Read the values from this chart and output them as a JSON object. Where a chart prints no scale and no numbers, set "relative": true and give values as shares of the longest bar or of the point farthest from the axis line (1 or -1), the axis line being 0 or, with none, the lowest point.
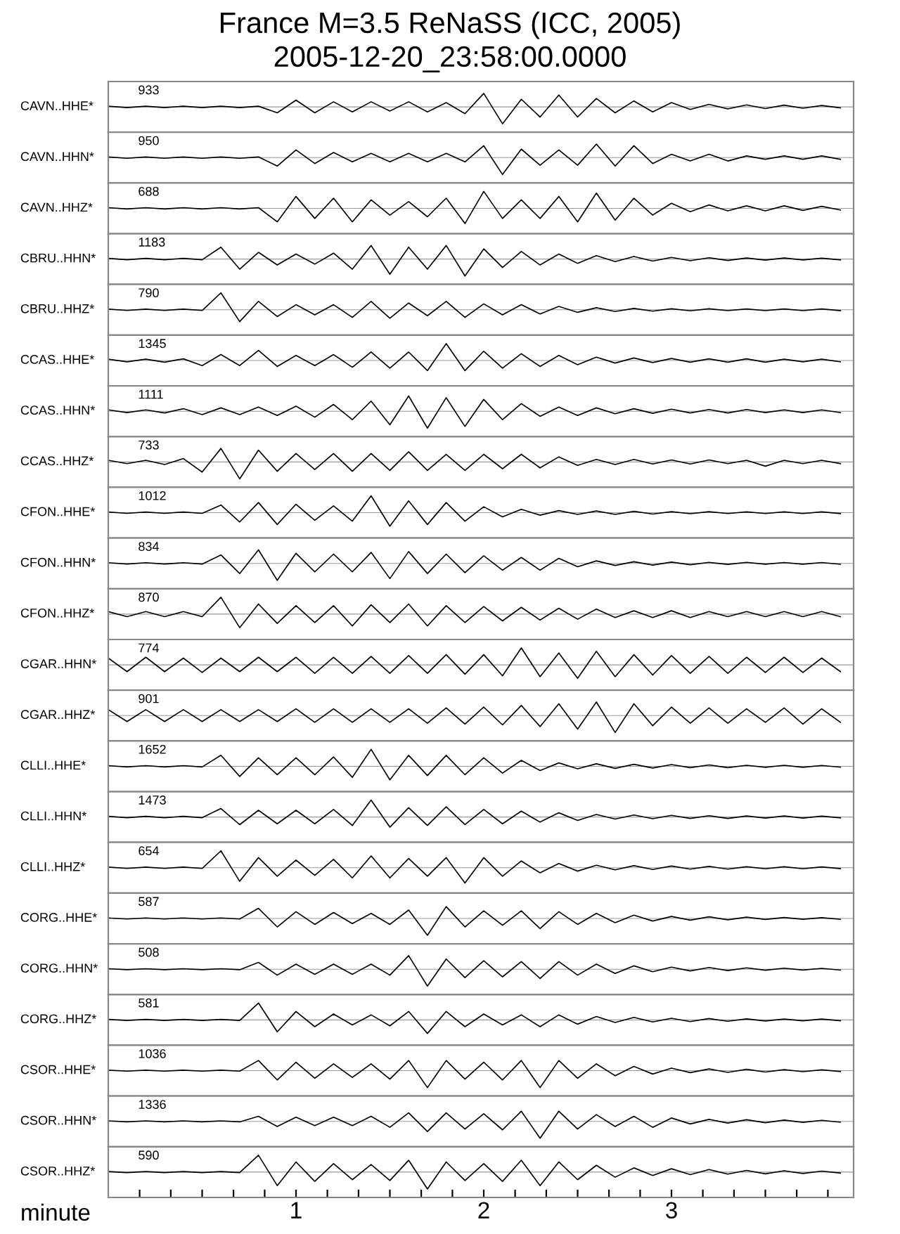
{
  "chart_data": [
    {
      "type": "line",
      "title": "France M=3.5 ReNaSS (ICC, 2005)",
      "subtitle": "2005-12-20_23:58:00.0000",
      "ylabel": "CAVN..HHE*",
      "annotations": [
        "933"
      ],
      "relative": true,
      "tick_labels": false,
      "xlim": [
        0,
        3.97
      ],
      "x": [
        0,
        0.1,
        0.2,
        0.3,
        0.4,
        0.5,
        0.6,
        0.7,
        0.8,
        0.9,
        1,
        1.1,
        1.2,
        1.3,
        1.4,
        1.5,
        1.6,
        1.7,
        1.8,
        1.9,
        2,
        2.1,
        2.2,
        2.3,
        2.4,
        2.5,
        2.6,
        2.7,
        2.8,
        2.9,
        3,
        3.1,
        3.2,
        3.3,
        3.4,
        3.5,
        3.6,
        3.7,
        3.8,
        3.9
      ],
      "values": [
        0.04,
        -0.04,
        0.04,
        -0.04,
        0.04,
        -0.04,
        0.04,
        -0.04,
        0.04,
        -0.35,
        0.4,
        -0.35,
        0.3,
        -0.3,
        0.3,
        -0.25,
        0.3,
        -0.3,
        0.25,
        -0.4,
        0.8,
        -1,
        0.45,
        -0.6,
        0.7,
        -0.6,
        0.5,
        -0.35,
        0.35,
        -0.3,
        0.25,
        -0.15,
        0.15,
        -0.12,
        0.12,
        -0.1,
        0.1,
        -0.08,
        0.08,
        -0.06
      ]
    },
    {
      "type": "line",
      "ylabel": "CAVN..HHN*",
      "annotations": [
        "950"
      ],
      "relative": true,
      "tick_labels": false,
      "xlim": [
        0,
        3.97
      ],
      "x": [
        0,
        0.1,
        0.2,
        0.3,
        0.4,
        0.5,
        0.6,
        0.7,
        0.8,
        0.9,
        1,
        1.1,
        1.2,
        1.3,
        1.4,
        1.5,
        1.6,
        1.7,
        1.8,
        1.9,
        2,
        2.1,
        2.2,
        2.3,
        2.4,
        2.5,
        2.6,
        2.7,
        2.8,
        2.9,
        3,
        3.1,
        3.2,
        3.3,
        3.4,
        3.5,
        3.6,
        3.7,
        3.8,
        3.9
      ],
      "values": [
        0.04,
        -0.04,
        0.04,
        -0.04,
        0.04,
        -0.04,
        0.04,
        -0.04,
        0.04,
        -0.5,
        0.45,
        -0.35,
        0.3,
        -0.25,
        0.25,
        -0.25,
        0.25,
        -0.25,
        0.25,
        -0.25,
        0.7,
        -1,
        0.5,
        -0.45,
        0.45,
        -0.45,
        0.8,
        -0.5,
        0.7,
        -0.35,
        0.2,
        -0.2,
        0.2,
        -0.2,
        0.1,
        -0.1,
        0.1,
        -0.1,
        0.1,
        -0.1
      ]
    },
    {
      "type": "line",
      "ylabel": "CAVN..HHZ*",
      "annotations": [
        "688"
      ],
      "relative": true,
      "tick_labels": false,
      "xlim": [
        0,
        3.97
      ],
      "x": [
        0,
        0.1,
        0.2,
        0.3,
        0.4,
        0.5,
        0.6,
        0.7,
        0.8,
        0.9,
        1,
        1.1,
        1.2,
        1.3,
        1.4,
        1.5,
        1.6,
        1.7,
        1.8,
        1.9,
        2,
        2.1,
        2.2,
        2.3,
        2.4,
        2.5,
        2.6,
        2.7,
        2.8,
        2.9,
        3,
        3.1,
        3.2,
        3.3,
        3.4,
        3.5,
        3.6,
        3.7,
        3.8,
        3.9
      ],
      "values": [
        0.04,
        -0.04,
        0.04,
        -0.04,
        0.04,
        -0.04,
        0.04,
        -0.04,
        0.04,
        -0.8,
        0.7,
        -0.6,
        0.6,
        -0.8,
        0.5,
        -0.4,
        0.4,
        -0.5,
        0.6,
        -0.9,
        1,
        -0.6,
        0.5,
        -0.6,
        0.7,
        -0.8,
        0.9,
        -0.7,
        0.6,
        -0.4,
        0.3,
        -0.2,
        0.2,
        -0.15,
        0.15,
        -0.15,
        0.15,
        -0.12,
        0.12,
        -0.1
      ]
    },
    {
      "type": "line",
      "ylabel": "CBRU..HHN*",
      "annotations": [
        "1183"
      ],
      "relative": true,
      "tick_labels": false,
      "xlim": [
        0,
        3.97
      ],
      "x": [
        0,
        0.1,
        0.2,
        0.3,
        0.4,
        0.5,
        0.6,
        0.7,
        0.8,
        0.9,
        1,
        1.1,
        1.2,
        1.3,
        1.4,
        1.5,
        1.6,
        1.7,
        1.8,
        1.9,
        2,
        2.1,
        2.2,
        2.3,
        2.4,
        2.5,
        2.6,
        2.7,
        2.8,
        2.9,
        3,
        3.1,
        3.2,
        3.3,
        3.4,
        3.5,
        3.6,
        3.7,
        3.8,
        3.9
      ],
      "values": [
        0.04,
        -0.04,
        0.04,
        -0.04,
        0.04,
        -0.04,
        0.7,
        -0.6,
        0.4,
        -0.35,
        0.3,
        -0.3,
        0.35,
        -0.6,
        0.8,
        -0.9,
        0.7,
        -0.6,
        0.8,
        -1,
        0.6,
        -0.5,
        0.45,
        -0.35,
        0.3,
        -0.25,
        0.2,
        -0.15,
        0.15,
        -0.12,
        0.1,
        -0.1,
        0.08,
        -0.08,
        0.06,
        -0.06,
        0.06,
        -0.05,
        0.05,
        -0.05
      ]
    },
    {
      "type": "line",
      "ylabel": "CBRU..HHZ*",
      "annotations": [
        "790"
      ],
      "relative": true,
      "tick_labels": false,
      "xlim": [
        0,
        3.97
      ],
      "x": [
        0,
        0.1,
        0.2,
        0.3,
        0.4,
        0.5,
        0.6,
        0.7,
        0.8,
        0.9,
        1,
        1.1,
        1.2,
        1.3,
        1.4,
        1.5,
        1.6,
        1.7,
        1.8,
        1.9,
        2,
        2.1,
        2.2,
        2.3,
        2.4,
        2.5,
        2.6,
        2.7,
        2.8,
        2.9,
        3,
        3.1,
        3.2,
        3.3,
        3.4,
        3.5,
        3.6,
        3.7,
        3.8,
        3.9
      ],
      "values": [
        0.04,
        -0.04,
        0.04,
        -0.04,
        0.04,
        -0.04,
        1,
        -0.7,
        0.5,
        -0.4,
        0.3,
        -0.3,
        0.3,
        -0.45,
        0.5,
        -0.5,
        0.4,
        -0.35,
        0.5,
        -0.45,
        0.35,
        -0.3,
        0.3,
        -0.25,
        0.2,
        -0.15,
        0.12,
        -0.1,
        0.08,
        -0.08,
        0.06,
        -0.06,
        0.06,
        -0.05,
        0.05,
        -0.05,
        0.05,
        -0.05,
        0.05,
        -0.05
      ]
    },
    {
      "type": "line",
      "ylabel": "CCAS..HHE*",
      "annotations": [
        "1345"
      ],
      "relative": true,
      "tick_labels": false,
      "xlim": [
        0,
        3.97
      ],
      "x": [
        0,
        0.1,
        0.2,
        0.3,
        0.4,
        0.5,
        0.6,
        0.7,
        0.8,
        0.9,
        1,
        1.1,
        1.2,
        1.3,
        1.4,
        1.5,
        1.6,
        1.7,
        1.8,
        1.9,
        2,
        2.1,
        2.2,
        2.3,
        2.4,
        2.5,
        2.6,
        2.7,
        2.8,
        2.9,
        3,
        3.1,
        3.2,
        3.3,
        3.4,
        3.5,
        3.6,
        3.7,
        3.8,
        3.9
      ],
      "values": [
        0.08,
        -0.08,
        0.08,
        -0.1,
        0.1,
        -0.3,
        0.35,
        -0.3,
        0.6,
        -0.35,
        0.3,
        -0.3,
        0.35,
        -0.4,
        0.5,
        -0.45,
        0.5,
        -0.6,
        1,
        -0.6,
        0.55,
        -0.45,
        0.4,
        -0.35,
        0.3,
        -0.25,
        0.2,
        -0.15,
        0.15,
        -0.12,
        0.12,
        -0.1,
        0.1,
        -0.1,
        0.1,
        -0.1,
        0.08,
        -0.08,
        0.08,
        -0.08
      ]
    },
    {
      "type": "line",
      "ylabel": "CCAS..HHN*",
      "annotations": [
        "1111"
      ],
      "relative": true,
      "tick_labels": false,
      "xlim": [
        0,
        3.97
      ],
      "x": [
        0,
        0.1,
        0.2,
        0.3,
        0.4,
        0.5,
        0.6,
        0.7,
        0.8,
        0.9,
        1,
        1.1,
        1.2,
        1.3,
        1.4,
        1.5,
        1.6,
        1.7,
        1.8,
        1.9,
        2,
        2.1,
        2.2,
        2.3,
        2.4,
        2.5,
        2.6,
        2.7,
        2.8,
        2.9,
        3,
        3.1,
        3.2,
        3.3,
        3.4,
        3.5,
        3.6,
        3.7,
        3.8,
        3.9
      ],
      "values": [
        0.08,
        -0.08,
        0.08,
        -0.1,
        0.15,
        -0.2,
        0.2,
        -0.2,
        0.25,
        -0.25,
        0.3,
        -0.35,
        0.4,
        -0.5,
        0.6,
        -0.8,
        0.9,
        -1,
        0.8,
        -0.9,
        0.7,
        -0.5,
        0.45,
        -0.3,
        0.25,
        -0.25,
        0.2,
        -0.15,
        0.15,
        -0.12,
        0.12,
        -0.1,
        0.1,
        -0.1,
        0.1,
        -0.08,
        0.08,
        -0.08,
        0.08,
        -0.08
      ]
    },
    {
      "type": "line",
      "ylabel": "CCAS..HHZ*",
      "annotations": [
        "733"
      ],
      "relative": true,
      "tick_labels": false,
      "xlim": [
        0,
        3.97
      ],
      "x": [
        0,
        0.1,
        0.2,
        0.3,
        0.4,
        0.5,
        0.6,
        0.7,
        0.8,
        0.9,
        1,
        1.1,
        1.2,
        1.3,
        1.4,
        1.5,
        1.6,
        1.7,
        1.8,
        1.9,
        2,
        2.1,
        2.2,
        2.3,
        2.4,
        2.5,
        2.6,
        2.7,
        2.8,
        2.9,
        3,
        3.1,
        3.2,
        3.3,
        3.4,
        3.5,
        3.6,
        3.7,
        3.8,
        3.9
      ],
      "values": [
        0.1,
        -0.1,
        0.1,
        -0.15,
        0.2,
        -0.6,
        0.8,
        -1,
        0.7,
        -0.55,
        0.5,
        -0.45,
        0.5,
        -0.55,
        0.5,
        -0.5,
        0.6,
        -0.5,
        0.45,
        -0.5,
        0.45,
        -0.4,
        0.45,
        -0.35,
        0.3,
        -0.2,
        0.15,
        -0.15,
        0.15,
        -0.12,
        0.12,
        -0.12,
        0.12,
        -0.1,
        0.1,
        -0.25,
        0.1,
        -0.1,
        0.1,
        -0.1
      ]
    },
    {
      "type": "line",
      "ylabel": "CFON..HHE*",
      "annotations": [
        "1012"
      ],
      "relative": true,
      "tick_labels": false,
      "xlim": [
        0,
        3.97
      ],
      "x": [
        0,
        0.1,
        0.2,
        0.3,
        0.4,
        0.5,
        0.6,
        0.7,
        0.8,
        0.9,
        1,
        1.1,
        1.2,
        1.3,
        1.4,
        1.5,
        1.6,
        1.7,
        1.8,
        1.9,
        2,
        2.1,
        2.2,
        2.3,
        2.4,
        2.5,
        2.6,
        2.7,
        2.8,
        2.9,
        3,
        3.1,
        3.2,
        3.3,
        3.4,
        3.5,
        3.6,
        3.7,
        3.8,
        3.9
      ],
      "values": [
        0.04,
        -0.04,
        0.04,
        -0.04,
        0.04,
        -0.04,
        0.45,
        -0.55,
        0.6,
        -0.7,
        0.5,
        -0.45,
        0.4,
        -0.5,
        1,
        -0.8,
        0.7,
        -0.7,
        0.6,
        -0.5,
        0.35,
        -0.25,
        0.2,
        -0.15,
        0.12,
        -0.1,
        0.1,
        -0.1,
        0.08,
        -0.08,
        0.06,
        -0.06,
        0.06,
        -0.05,
        0.05,
        -0.05,
        0.05,
        -0.05,
        0.05,
        -0.05
      ]
    },
    {
      "type": "line",
      "ylabel": "CFON..HHN*",
      "annotations": [
        "834"
      ],
      "relative": true,
      "tick_labels": false,
      "xlim": [
        0,
        3.97
      ],
      "x": [
        0,
        0.1,
        0.2,
        0.3,
        0.4,
        0.5,
        0.6,
        0.7,
        0.8,
        0.9,
        1,
        1.1,
        1.2,
        1.3,
        1.4,
        1.5,
        1.6,
        1.7,
        1.8,
        1.9,
        2,
        2.1,
        2.2,
        2.3,
        2.4,
        2.5,
        2.6,
        2.7,
        2.8,
        2.9,
        3,
        3.1,
        3.2,
        3.3,
        3.4,
        3.5,
        3.6,
        3.7,
        3.8,
        3.9
      ],
      "values": [
        0.04,
        -0.04,
        0.04,
        -0.04,
        0.04,
        -0.04,
        0.5,
        -0.6,
        0.8,
        -1,
        0.6,
        -0.5,
        0.55,
        -0.5,
        0.65,
        -0.9,
        0.7,
        -0.6,
        0.55,
        -0.55,
        0.45,
        -0.4,
        0.35,
        -0.4,
        0.3,
        -0.2,
        0.15,
        -0.12,
        0.1,
        -0.1,
        0.08,
        -0.08,
        0.06,
        -0.06,
        0.06,
        -0.05,
        0.05,
        -0.05,
        0.05,
        -0.05
      ]
    },
    {
      "type": "line",
      "ylabel": "CFON..HHZ*",
      "annotations": [
        "870"
      ],
      "relative": true,
      "tick_labels": false,
      "xlim": [
        0,
        3.97
      ],
      "x": [
        0,
        0.1,
        0.2,
        0.3,
        0.4,
        0.5,
        0.6,
        0.7,
        0.8,
        0.9,
        1,
        1.1,
        1.2,
        1.3,
        1.4,
        1.5,
        1.6,
        1.7,
        1.8,
        1.9,
        2,
        2.1,
        2.2,
        2.3,
        2.4,
        2.5,
        2.6,
        2.7,
        2.8,
        2.9,
        3,
        3.1,
        3.2,
        3.3,
        3.4,
        3.5,
        3.6,
        3.7,
        3.8,
        3.9
      ],
      "values": [
        0.15,
        -0.15,
        0.15,
        -0.15,
        0.15,
        -0.15,
        1,
        -0.8,
        0.6,
        -0.55,
        0.5,
        -0.5,
        0.5,
        -0.7,
        0.55,
        -0.5,
        0.6,
        -0.7,
        0.5,
        -0.5,
        0.45,
        -0.4,
        0.4,
        -0.35,
        0.35,
        -0.3,
        0.3,
        -0.2,
        0.2,
        -0.2,
        0.2,
        -0.2,
        0.15,
        -0.15,
        0.15,
        -0.15,
        0.15,
        -0.15,
        0.15,
        -0.15
      ]
    },
    {
      "type": "line",
      "ylabel": "CGAR..HHN*",
      "annotations": [
        "774"
      ],
      "relative": true,
      "tick_labels": false,
      "xlim": [
        0,
        3.97
      ],
      "x": [
        0,
        0.1,
        0.2,
        0.3,
        0.4,
        0.5,
        0.6,
        0.7,
        0.8,
        0.9,
        1,
        1.1,
        1.2,
        1.3,
        1.4,
        1.5,
        1.6,
        1.7,
        1.8,
        1.9,
        2,
        2.1,
        2.2,
        2.3,
        2.4,
        2.5,
        2.6,
        2.7,
        2.8,
        2.9,
        3,
        3.1,
        3.2,
        3.3,
        3.4,
        3.5,
        3.6,
        3.7,
        3.8,
        3.9
      ],
      "values": [
        0.4,
        -0.4,
        0.45,
        -0.4,
        0.4,
        -0.45,
        0.4,
        -0.4,
        0.45,
        -0.4,
        0.45,
        -0.5,
        0.45,
        -0.5,
        0.5,
        -0.5,
        0.55,
        -0.5,
        0.6,
        -0.55,
        0.6,
        -0.65,
        1,
        -0.7,
        0.7,
        -0.8,
        0.8,
        -0.7,
        0.6,
        -0.6,
        0.55,
        -0.5,
        0.5,
        -0.5,
        0.45,
        -0.45,
        0.45,
        -0.45,
        0.4,
        -0.4
      ]
    },
    {
      "type": "line",
      "ylabel": "CGAR..HHZ*",
      "annotations": [
        "901"
      ],
      "relative": true,
      "tick_labels": false,
      "xlim": [
        0,
        3.97
      ],
      "x": [
        0,
        0.1,
        0.2,
        0.3,
        0.4,
        0.5,
        0.6,
        0.7,
        0.8,
        0.9,
        1,
        1.1,
        1.2,
        1.3,
        1.4,
        1.5,
        1.6,
        1.7,
        1.8,
        1.9,
        2,
        2.1,
        2.2,
        2.3,
        2.4,
        2.5,
        2.6,
        2.7,
        2.8,
        2.9,
        3,
        3.1,
        3.2,
        3.3,
        3.4,
        3.5,
        3.6,
        3.7,
        3.8,
        3.9
      ],
      "values": [
        0.35,
        -0.35,
        0.35,
        -0.35,
        0.35,
        -0.35,
        0.35,
        -0.35,
        0.35,
        -0.35,
        0.4,
        -0.4,
        0.4,
        -0.4,
        0.4,
        -0.4,
        0.4,
        -0.45,
        0.45,
        -0.5,
        0.5,
        -0.55,
        0.6,
        -0.65,
        0.7,
        -0.8,
        0.8,
        -1,
        0.7,
        -0.6,
        0.5,
        -0.45,
        0.45,
        -0.45,
        0.4,
        -0.4,
        0.45,
        -0.5,
        0.4,
        -0.4
      ]
    },
    {
      "type": "line",
      "ylabel": "CLLI..HHE*",
      "annotations": [
        "1652"
      ],
      "relative": true,
      "tick_labels": false,
      "xlim": [
        0,
        3.97
      ],
      "x": [
        0,
        0.1,
        0.2,
        0.3,
        0.4,
        0.5,
        0.6,
        0.7,
        0.8,
        0.9,
        1,
        1.1,
        1.2,
        1.3,
        1.4,
        1.5,
        1.6,
        1.7,
        1.8,
        1.9,
        2,
        2.1,
        2.2,
        2.3,
        2.4,
        2.5,
        2.6,
        2.7,
        2.8,
        2.9,
        3,
        3.1,
        3.2,
        3.3,
        3.4,
        3.5,
        3.6,
        3.7,
        3.8,
        3.9
      ],
      "values": [
        0.04,
        -0.04,
        0.04,
        -0.04,
        0.04,
        -0.04,
        0.65,
        -0.6,
        0.5,
        -0.5,
        0.5,
        -0.5,
        0.55,
        -0.65,
        1,
        -0.8,
        0.65,
        -0.55,
        0.65,
        -0.5,
        0.5,
        -0.4,
        0.35,
        -0.25,
        0.2,
        -0.15,
        0.15,
        -0.12,
        0.12,
        -0.1,
        0.1,
        -0.08,
        0.08,
        -0.08,
        0.06,
        -0.06,
        0.06,
        -0.06,
        0.05,
        -0.05
      ]
    },
    {
      "type": "line",
      "ylabel": "CLLI..HHN*",
      "annotations": [
        "1473"
      ],
      "relative": true,
      "tick_labels": false,
      "xlim": [
        0,
        3.97
      ],
      "x": [
        0,
        0.1,
        0.2,
        0.3,
        0.4,
        0.5,
        0.6,
        0.7,
        0.8,
        0.9,
        1,
        1.1,
        1.2,
        1.3,
        1.4,
        1.5,
        1.6,
        1.7,
        1.8,
        1.9,
        2,
        2.1,
        2.2,
        2.3,
        2.4,
        2.5,
        2.6,
        2.7,
        2.8,
        2.9,
        3,
        3.1,
        3.2,
        3.3,
        3.4,
        3.5,
        3.6,
        3.7,
        3.8,
        3.9
      ],
      "values": [
        0.04,
        -0.04,
        0.04,
        -0.04,
        0.04,
        -0.04,
        0.5,
        -0.45,
        0.4,
        -0.4,
        0.4,
        -0.4,
        0.45,
        -0.5,
        1,
        -0.6,
        0.55,
        -0.5,
        0.6,
        -0.45,
        0.45,
        -0.4,
        0.35,
        -0.3,
        0.25,
        -0.2,
        0.15,
        -0.12,
        0.12,
        -0.1,
        0.1,
        -0.08,
        0.08,
        -0.08,
        0.06,
        -0.06,
        0.06,
        -0.06,
        0.05,
        -0.05
      ]
    },
    {
      "type": "line",
      "ylabel": "CLLI..HHZ*",
      "annotations": [
        "654"
      ],
      "relative": true,
      "tick_labels": false,
      "xlim": [
        0,
        3.97
      ],
      "x": [
        0,
        0.1,
        0.2,
        0.3,
        0.4,
        0.5,
        0.6,
        0.7,
        0.8,
        0.9,
        1,
        1.1,
        1.2,
        1.3,
        1.4,
        1.5,
        1.6,
        1.7,
        1.8,
        1.9,
        2,
        2.1,
        2.2,
        2.3,
        2.4,
        2.5,
        2.6,
        2.7,
        2.8,
        2.9,
        3,
        3.1,
        3.2,
        3.3,
        3.4,
        3.5,
        3.6,
        3.7,
        3.8,
        3.9
      ],
      "values": [
        0.04,
        -0.04,
        0.04,
        -0.04,
        0.04,
        -0.04,
        1,
        -0.8,
        0.6,
        -0.5,
        0.45,
        -0.45,
        0.5,
        -0.6,
        0.7,
        -0.6,
        0.55,
        -0.5,
        0.6,
        -0.9,
        0.6,
        -0.5,
        0.4,
        -0.3,
        0.25,
        -0.2,
        0.15,
        -0.12,
        0.12,
        -0.1,
        0.1,
        -0.08,
        0.08,
        -0.08,
        0.06,
        -0.06,
        0.06,
        -0.06,
        0.05,
        -0.05
      ]
    },
    {
      "type": "line",
      "ylabel": "CORG..HHE*",
      "annotations": [
        "587"
      ],
      "relative": true,
      "tick_labels": false,
      "xlim": [
        0,
        3.97
      ],
      "x": [
        0,
        0.1,
        0.2,
        0.3,
        0.4,
        0.5,
        0.6,
        0.7,
        0.8,
        0.9,
        1,
        1.1,
        1.2,
        1.3,
        1.4,
        1.5,
        1.6,
        1.7,
        1.8,
        1.9,
        2,
        2.1,
        2.2,
        2.3,
        2.4,
        2.5,
        2.6,
        2.7,
        2.8,
        2.9,
        3,
        3.1,
        3.2,
        3.3,
        3.4,
        3.5,
        3.6,
        3.7,
        3.8,
        3.9
      ],
      "values": [
        0.03,
        -0.03,
        0.03,
        -0.03,
        0.03,
        -0.03,
        0.03,
        -0.03,
        0.6,
        -0.5,
        0.4,
        -0.35,
        0.35,
        -0.3,
        0.3,
        -0.35,
        0.5,
        -1,
        0.7,
        -0.5,
        0.45,
        -0.4,
        0.45,
        -0.6,
        0.4,
        -0.35,
        0.3,
        -0.25,
        0.2,
        -0.15,
        0.12,
        -0.1,
        0.1,
        -0.08,
        0.08,
        -0.06,
        0.06,
        -0.05,
        0.05,
        -0.05
      ]
    },
    {
      "type": "line",
      "ylabel": "CORG..HHN*",
      "annotations": [
        "508"
      ],
      "relative": true,
      "tick_labels": false,
      "xlim": [
        0,
        3.97
      ],
      "x": [
        0,
        0.1,
        0.2,
        0.3,
        0.4,
        0.5,
        0.6,
        0.7,
        0.8,
        0.9,
        1,
        1.1,
        1.2,
        1.3,
        1.4,
        1.5,
        1.6,
        1.7,
        1.8,
        1.9,
        2,
        2.1,
        2.2,
        2.3,
        2.4,
        2.5,
        2.6,
        2.7,
        2.8,
        2.9,
        3,
        3.1,
        3.2,
        3.3,
        3.4,
        3.5,
        3.6,
        3.7,
        3.8,
        3.9
      ],
      "values": [
        0.03,
        -0.03,
        0.03,
        -0.03,
        0.03,
        -0.03,
        0.03,
        -0.03,
        0.4,
        -0.35,
        0.3,
        -0.3,
        0.3,
        -0.3,
        0.3,
        -0.35,
        0.8,
        -1,
        0.6,
        -0.5,
        0.5,
        -0.45,
        0.45,
        -0.55,
        0.45,
        -0.35,
        0.3,
        -0.25,
        0.2,
        -0.15,
        0.12,
        -0.1,
        0.1,
        -0.08,
        0.08,
        -0.06,
        0.06,
        -0.05,
        0.05,
        -0.05
      ]
    },
    {
      "type": "line",
      "ylabel": "CORG..HHZ*",
      "annotations": [
        "581"
      ],
      "relative": true,
      "tick_labels": false,
      "xlim": [
        0,
        3.97
      ],
      "x": [
        0,
        0.1,
        0.2,
        0.3,
        0.4,
        0.5,
        0.6,
        0.7,
        0.8,
        0.9,
        1,
        1.1,
        1.2,
        1.3,
        1.4,
        1.5,
        1.6,
        1.7,
        1.8,
        1.9,
        2,
        2.1,
        2.2,
        2.3,
        2.4,
        2.5,
        2.6,
        2.7,
        2.8,
        2.9,
        3,
        3.1,
        3.2,
        3.3,
        3.4,
        3.5,
        3.6,
        3.7,
        3.8,
        3.9
      ],
      "values": [
        0.03,
        -0.03,
        0.03,
        -0.03,
        0.03,
        -0.03,
        0.03,
        -0.03,
        1,
        -0.7,
        0.5,
        -0.4,
        0.35,
        -0.3,
        0.3,
        -0.35,
        0.5,
        -0.8,
        0.5,
        -0.4,
        0.35,
        -0.3,
        0.3,
        -0.4,
        0.3,
        -0.25,
        0.2,
        -0.15,
        0.15,
        -0.12,
        0.1,
        -0.1,
        0.08,
        -0.08,
        0.06,
        -0.06,
        0.05,
        -0.05,
        0.05,
        -0.05
      ]
    },
    {
      "type": "line",
      "ylabel": "CSOR..HHE*",
      "annotations": [
        "1036"
      ],
      "relative": true,
      "tick_labels": false,
      "xlim": [
        0,
        3.97
      ],
      "x": [
        0,
        0.1,
        0.2,
        0.3,
        0.4,
        0.5,
        0.6,
        0.7,
        0.8,
        0.9,
        1,
        1.1,
        1.2,
        1.3,
        1.4,
        1.5,
        1.6,
        1.7,
        1.8,
        1.9,
        2,
        2.1,
        2.2,
        2.3,
        2.4,
        2.5,
        2.6,
        2.7,
        2.8,
        2.9,
        3,
        3.1,
        3.2,
        3.3,
        3.4,
        3.5,
        3.6,
        3.7,
        3.8,
        3.9
      ],
      "values": [
        0.03,
        -0.03,
        0.03,
        -0.03,
        0.03,
        -0.03,
        0.03,
        -0.03,
        0.6,
        -0.55,
        0.5,
        -0.45,
        0.4,
        -0.4,
        0.4,
        -0.5,
        0.6,
        -1,
        0.6,
        -0.5,
        0.5,
        -0.55,
        0.6,
        -1,
        0.6,
        -0.45,
        0.4,
        -0.3,
        0.25,
        -0.2,
        0.15,
        -0.12,
        0.1,
        -0.1,
        0.08,
        -0.08,
        0.06,
        -0.06,
        0.05,
        -0.05
      ]
    },
    {
      "type": "line",
      "ylabel": "CSOR..HHN*",
      "annotations": [
        "1336"
      ],
      "relative": true,
      "tick_labels": false,
      "xlim": [
        0,
        3.97
      ],
      "x": [
        0,
        0.1,
        0.2,
        0.3,
        0.4,
        0.5,
        0.6,
        0.7,
        0.8,
        0.9,
        1,
        1.1,
        1.2,
        1.3,
        1.4,
        1.5,
        1.6,
        1.7,
        1.8,
        1.9,
        2,
        2.1,
        2.2,
        2.3,
        2.4,
        2.5,
        2.6,
        2.7,
        2.8,
        2.9,
        3,
        3.1,
        3.2,
        3.3,
        3.4,
        3.5,
        3.6,
        3.7,
        3.8,
        3.9
      ],
      "values": [
        0.03,
        -0.03,
        0.03,
        -0.03,
        0.03,
        -0.03,
        0.03,
        -0.03,
        0.3,
        -0.3,
        0.25,
        -0.25,
        0.25,
        -0.25,
        0.3,
        -0.35,
        0.5,
        -0.6,
        0.5,
        -0.45,
        0.45,
        -0.5,
        0.6,
        -1,
        0.6,
        -0.45,
        0.4,
        -0.3,
        0.3,
        -0.35,
        0.2,
        -0.15,
        0.12,
        -0.1,
        0.1,
        -0.08,
        0.08,
        -0.06,
        0.06,
        -0.05
      ]
    },
    {
      "type": "line",
      "ylabel": "CSOR..HHZ*",
      "annotations": [
        "590"
      ],
      "relative": true,
      "tick_labels": "x",
      "xlabel": "minute",
      "xlim": [
        0,
        3.97
      ],
      "xticks": [
        {
          "value": 0.167,
          "label": null
        },
        {
          "value": 0.333,
          "label": null
        },
        {
          "value": 0.5,
          "label": null
        },
        {
          "value": 0.667,
          "label": null
        },
        {
          "value": 0.833,
          "label": null
        },
        1,
        {
          "value": 1.167,
          "label": null
        },
        {
          "value": 1.333,
          "label": null
        },
        {
          "value": 1.5,
          "label": null
        },
        {
          "value": 1.667,
          "label": null
        },
        {
          "value": 1.833,
          "label": null
        },
        2,
        {
          "value": 2.167,
          "label": null
        },
        {
          "value": 2.333,
          "label": null
        },
        {
          "value": 2.5,
          "label": null
        },
        {
          "value": 2.667,
          "label": null
        },
        {
          "value": 2.833,
          "label": null
        },
        3,
        {
          "value": 3.167,
          "label": null
        },
        {
          "value": 3.333,
          "label": null
        },
        {
          "value": 3.5,
          "label": null
        },
        {
          "value": 3.667,
          "label": null
        },
        {
          "value": 3.833,
          "label": null
        }
      ],
      "x": [
        0,
        0.1,
        0.2,
        0.3,
        0.4,
        0.5,
        0.6,
        0.7,
        0.8,
        0.9,
        1,
        1.1,
        1.2,
        1.3,
        1.4,
        1.5,
        1.6,
        1.7,
        1.8,
        1.9,
        2,
        2.1,
        2.2,
        2.3,
        2.4,
        2.5,
        2.6,
        2.7,
        2.8,
        2.9,
        3,
        3.1,
        3.2,
        3.3,
        3.4,
        3.5,
        3.6,
        3.7,
        3.8,
        3.9
      ],
      "values": [
        0.03,
        -0.03,
        0.03,
        -0.03,
        0.03,
        -0.03,
        0.03,
        -0.03,
        1,
        -0.8,
        0.6,
        -0.55,
        0.5,
        -0.45,
        0.45,
        -0.5,
        0.7,
        -1,
        0.6,
        -0.5,
        0.5,
        -0.55,
        0.7,
        -0.8,
        0.6,
        -0.45,
        0.4,
        -0.3,
        0.25,
        -0.2,
        0.2,
        -0.15,
        0.15,
        -0.12,
        0.1,
        -0.1,
        0.08,
        -0.08,
        0.06,
        -0.06
      ]
    }
  ]
}
